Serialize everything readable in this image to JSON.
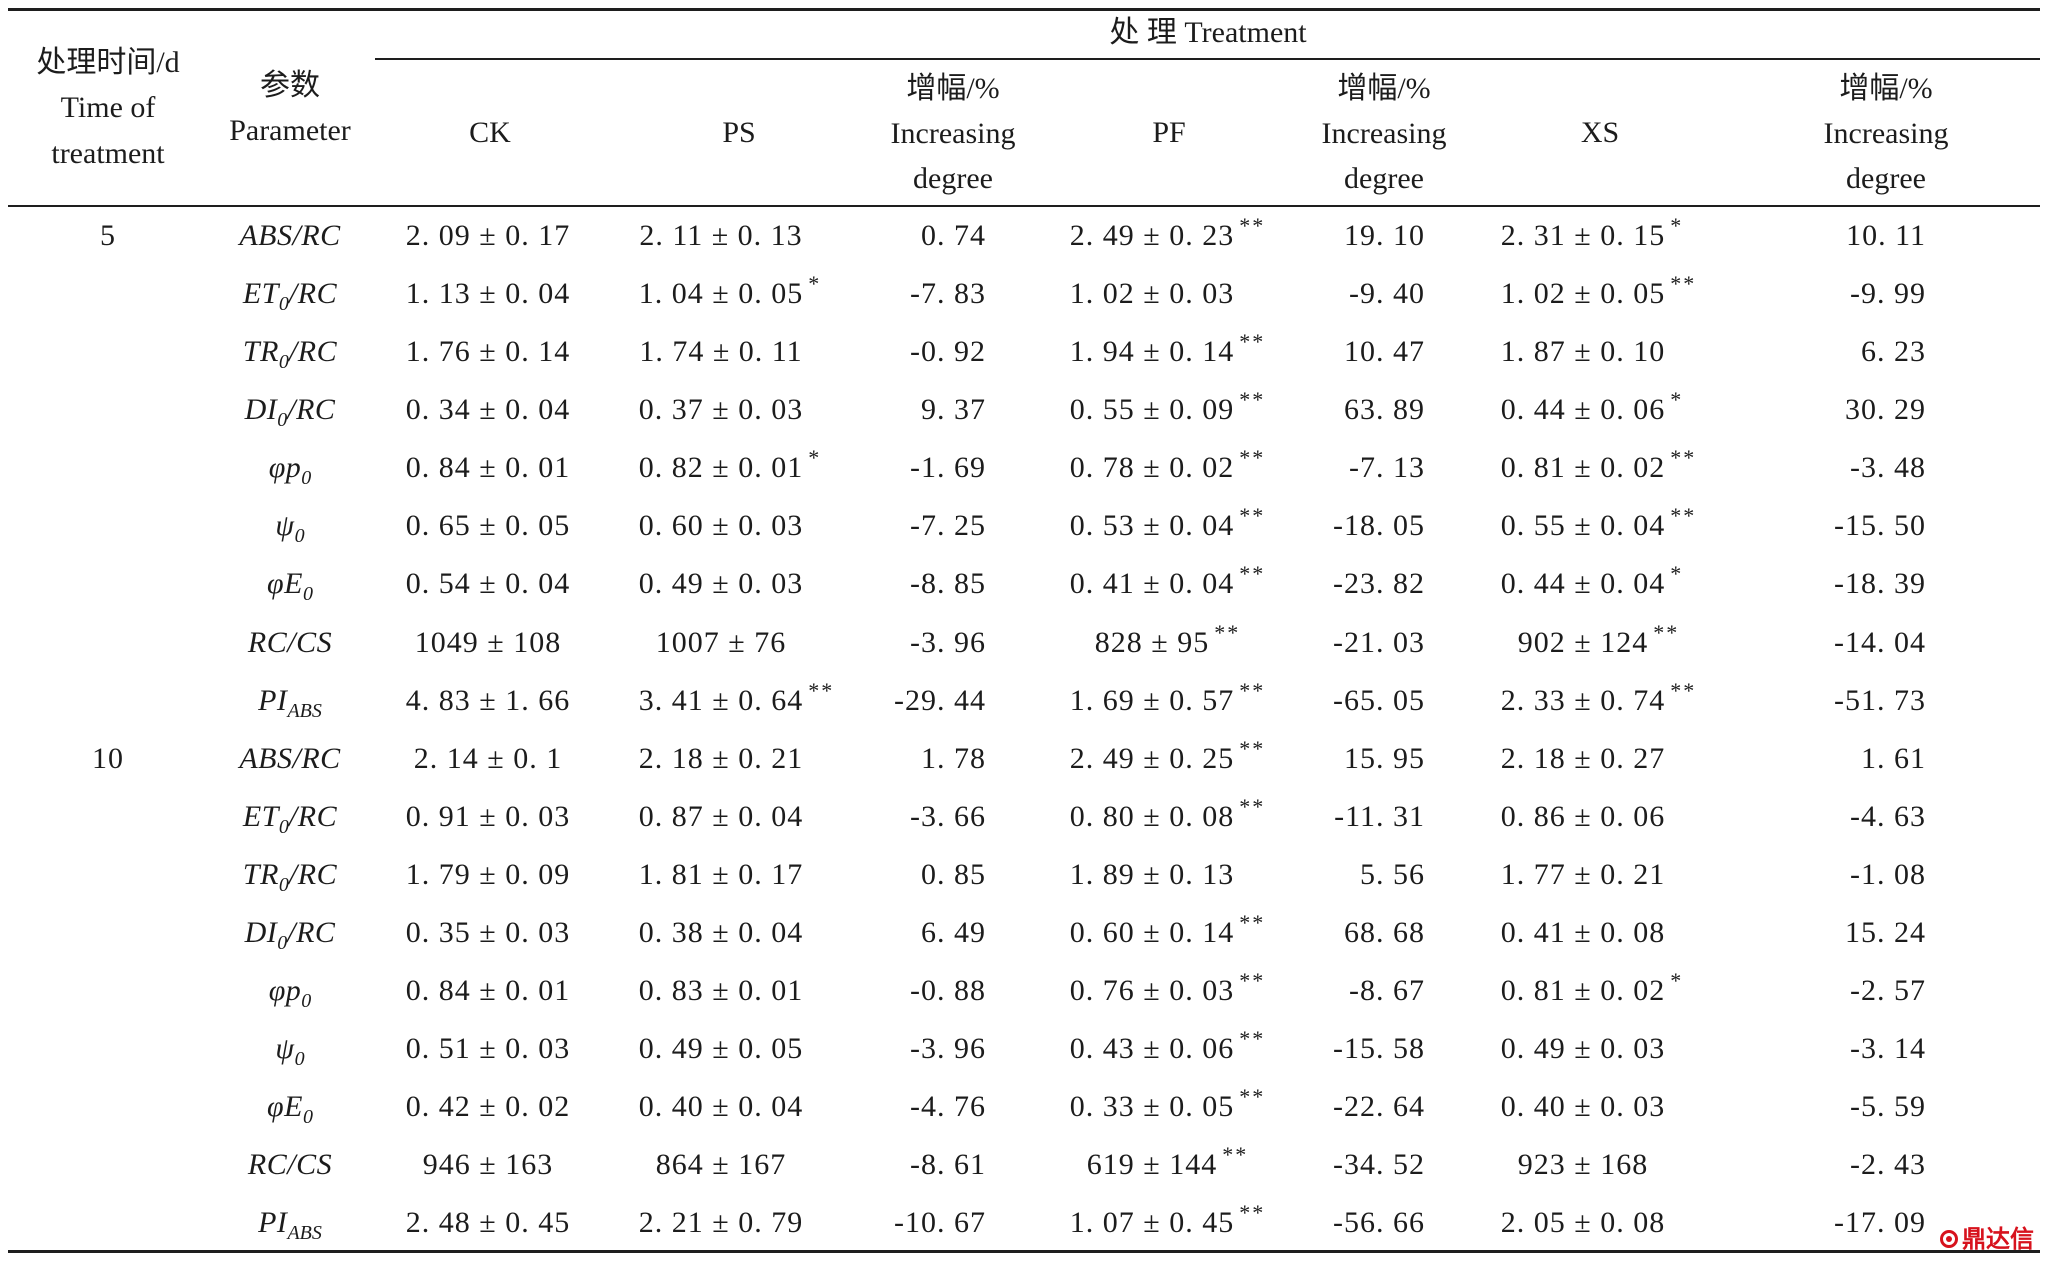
{
  "header": {
    "time_lines": [
      "处理时间/d",
      "Time of",
      "treatment"
    ],
    "param_lines": [
      "参数",
      "Parameter"
    ],
    "treatment": "处 理 Treatment",
    "ck": "CK",
    "ps": "PS",
    "pf": "PF",
    "xs": "XS",
    "inc_lines": [
      "增幅/%",
      "Increasing",
      "degree"
    ]
  },
  "rows": [
    {
      "time": "5",
      "param": {
        "main": "ABS/RC"
      },
      "ck": {
        "v": "2. 09 ± 0. 17"
      },
      "ps": {
        "v": "2. 11 ± 0. 13"
      },
      "ps_inc": "0. 74",
      "pf": {
        "v": "2. 49 ± 0. 23",
        "sig": "**"
      },
      "pf_inc": "19. 10",
      "xs": {
        "v": "2. 31 ± 0. 15",
        "sig": "*"
      },
      "xs_inc": "10. 11"
    },
    {
      "param": {
        "main": "ET",
        "sub": "0",
        "tail": "/RC"
      },
      "ck": {
        "v": "1. 13 ± 0. 04"
      },
      "ps": {
        "v": "1. 04 ± 0. 05",
        "sig": "*"
      },
      "ps_inc": "-7. 83",
      "pf": {
        "v": "1. 02 ± 0. 03"
      },
      "pf_inc": "-9. 40",
      "xs": {
        "v": "1. 02 ± 0. 05",
        "sig": "**"
      },
      "xs_inc": "-9. 99"
    },
    {
      "param": {
        "main": "TR",
        "sub": "0",
        "tail": "/RC"
      },
      "ck": {
        "v": "1. 76 ± 0. 14"
      },
      "ps": {
        "v": "1. 74 ± 0. 11"
      },
      "ps_inc": "-0. 92",
      "pf": {
        "v": "1. 94 ± 0. 14",
        "sig": "**"
      },
      "pf_inc": "10. 47",
      "xs": {
        "v": "1. 87 ± 0. 10"
      },
      "xs_inc": "6. 23"
    },
    {
      "param": {
        "main": "DI",
        "sub": "0",
        "tail": "/RC"
      },
      "ck": {
        "v": "0. 34 ± 0. 04"
      },
      "ps": {
        "v": "0. 37 ± 0. 03"
      },
      "ps_inc": "9. 37",
      "pf": {
        "v": "0. 55 ± 0. 09",
        "sig": "**"
      },
      "pf_inc": "63. 89",
      "xs": {
        "v": "0. 44 ± 0. 06",
        "sig": "*"
      },
      "xs_inc": "30. 29"
    },
    {
      "param": {
        "main": "φp",
        "sub": "0"
      },
      "ck": {
        "v": "0. 84 ± 0. 01"
      },
      "ps": {
        "v": "0. 82 ± 0. 01",
        "sig": "*"
      },
      "ps_inc": "-1. 69",
      "pf": {
        "v": "0. 78 ± 0. 02",
        "sig": "**"
      },
      "pf_inc": "-7. 13",
      "xs": {
        "v": "0. 81 ± 0. 02",
        "sig": "**"
      },
      "xs_inc": "-3. 48"
    },
    {
      "param": {
        "main": "ψ",
        "sub": "0"
      },
      "ck": {
        "v": "0. 65 ± 0. 05"
      },
      "ps": {
        "v": "0. 60 ± 0. 03"
      },
      "ps_inc": "-7. 25",
      "pf": {
        "v": "0. 53 ± 0. 04",
        "sig": "**"
      },
      "pf_inc": "-18. 05",
      "xs": {
        "v": "0. 55 ± 0. 04",
        "sig": "**"
      },
      "xs_inc": "-15. 50"
    },
    {
      "param": {
        "main": "φE",
        "sub": "0"
      },
      "ck": {
        "v": "0. 54 ± 0. 04"
      },
      "ps": {
        "v": "0. 49 ± 0. 03"
      },
      "ps_inc": "-8. 85",
      "pf": {
        "v": "0. 41 ± 0. 04",
        "sig": "**"
      },
      "pf_inc": "-23. 82",
      "xs": {
        "v": "0. 44 ± 0. 04",
        "sig": "*"
      },
      "xs_inc": "-18. 39"
    },
    {
      "param": {
        "main": "RC/CS"
      },
      "ck": {
        "v": "1049 ± 108"
      },
      "ps": {
        "v": "1007 ± 76"
      },
      "ps_inc": "-3. 96",
      "pf": {
        "v": "828 ± 95",
        "sig": "**"
      },
      "pf_inc": "-21. 03",
      "xs": {
        "v": "902 ± 124",
        "sig": "**"
      },
      "xs_inc": "-14. 04"
    },
    {
      "param": {
        "main": "PI",
        "sub": "ABS"
      },
      "ck": {
        "v": "4. 83 ± 1. 66"
      },
      "ps": {
        "v": "3. 41 ± 0. 64",
        "sig": "**"
      },
      "ps_inc": "-29. 44",
      "pf": {
        "v": "1. 69 ± 0. 57",
        "sig": "**"
      },
      "pf_inc": "-65. 05",
      "xs": {
        "v": "2. 33 ± 0. 74",
        "sig": "**"
      },
      "xs_inc": "-51. 73"
    },
    {
      "time": "10",
      "param": {
        "main": "ABS/RC"
      },
      "ck": {
        "v": "2. 14 ± 0. 1"
      },
      "ps": {
        "v": "2. 18 ± 0. 21"
      },
      "ps_inc": "1. 78",
      "pf": {
        "v": "2. 49 ± 0. 25",
        "sig": "**"
      },
      "pf_inc": "15. 95",
      "xs": {
        "v": "2. 18 ± 0. 27"
      },
      "xs_inc": "1. 61"
    },
    {
      "param": {
        "main": "ET",
        "sub": "0",
        "tail": "/RC"
      },
      "ck": {
        "v": "0. 91 ± 0. 03"
      },
      "ps": {
        "v": "0. 87 ± 0. 04"
      },
      "ps_inc": "-3. 66",
      "pf": {
        "v": "0. 80 ± 0. 08",
        "sig": "**"
      },
      "pf_inc": "-11. 31",
      "xs": {
        "v": "0. 86 ± 0. 06"
      },
      "xs_inc": "-4. 63"
    },
    {
      "param": {
        "main": "TR",
        "sub": "0",
        "tail": "/RC"
      },
      "ck": {
        "v": "1. 79 ± 0. 09"
      },
      "ps": {
        "v": "1. 81 ± 0. 17"
      },
      "ps_inc": "0. 85",
      "pf": {
        "v": "1. 89 ± 0. 13"
      },
      "pf_inc": "5. 56",
      "xs": {
        "v": "1. 77 ± 0. 21"
      },
      "xs_inc": "-1. 08"
    },
    {
      "param": {
        "main": "DI",
        "sub": "0",
        "tail": "/RC"
      },
      "ck": {
        "v": "0. 35 ± 0. 03"
      },
      "ps": {
        "v": "0. 38 ± 0. 04"
      },
      "ps_inc": "6. 49",
      "pf": {
        "v": "0. 60 ± 0. 14",
        "sig": "**"
      },
      "pf_inc": "68. 68",
      "xs": {
        "v": "0. 41 ± 0. 08"
      },
      "xs_inc": "15. 24"
    },
    {
      "param": {
        "main": "φp",
        "sub": "0"
      },
      "ck": {
        "v": "0. 84 ± 0. 01"
      },
      "ps": {
        "v": "0. 83 ± 0. 01"
      },
      "ps_inc": "-0. 88",
      "pf": {
        "v": "0. 76 ± 0. 03",
        "sig": "**"
      },
      "pf_inc": "-8. 67",
      "xs": {
        "v": "0. 81 ± 0. 02",
        "sig": "*"
      },
      "xs_inc": "-2. 57"
    },
    {
      "param": {
        "main": "ψ",
        "sub": "0"
      },
      "ck": {
        "v": "0. 51 ± 0. 03"
      },
      "ps": {
        "v": "0. 49 ± 0. 05"
      },
      "ps_inc": "-3. 96",
      "pf": {
        "v": "0. 43 ± 0. 06",
        "sig": "**"
      },
      "pf_inc": "-15. 58",
      "xs": {
        "v": "0. 49 ± 0. 03"
      },
      "xs_inc": "-3. 14"
    },
    {
      "param": {
        "main": "φE",
        "sub": "0"
      },
      "ck": {
        "v": "0. 42 ± 0. 02"
      },
      "ps": {
        "v": "0. 40 ± 0. 04"
      },
      "ps_inc": "-4. 76",
      "pf": {
        "v": "0. 33 ± 0. 05",
        "sig": "**"
      },
      "pf_inc": "-22. 64",
      "xs": {
        "v": "0. 40 ± 0. 03"
      },
      "xs_inc": "-5. 59"
    },
    {
      "param": {
        "main": "RC/CS"
      },
      "ck": {
        "v": "946 ± 163"
      },
      "ps": {
        "v": "864 ± 167"
      },
      "ps_inc": "-8. 61",
      "pf": {
        "v": "619 ± 144",
        "sig": "**"
      },
      "pf_inc": "-34. 52",
      "xs": {
        "v": "923 ± 168"
      },
      "xs_inc": "-2. 43"
    },
    {
      "param": {
        "main": "PI",
        "sub": "ABS"
      },
      "ck": {
        "v": "2. 48 ± 0. 45"
      },
      "ps": {
        "v": "2. 21 ± 0. 79"
      },
      "ps_inc": "-10. 67",
      "pf": {
        "v": "1. 07 ± 0. 45",
        "sig": "**"
      },
      "pf_inc": "-56. 66",
      "xs": {
        "v": "2. 05 ± 0. 08"
      },
      "xs_inc": "-17. 09"
    }
  ],
  "watermark": {
    "text": "鼎达信",
    "color": "#d7121d"
  }
}
